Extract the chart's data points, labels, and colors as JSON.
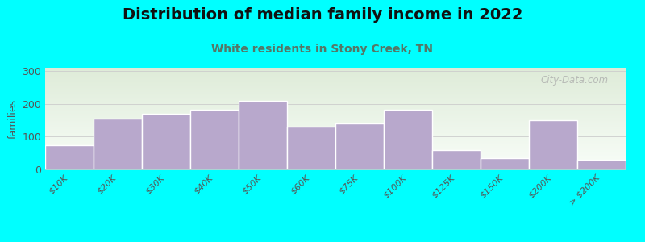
{
  "title": "Distribution of median family income in 2022",
  "subtitle": "White residents in Stony Creek, TN",
  "categories": [
    "$10K",
    "$20K",
    "$30K",
    "$40K",
    "$50K",
    "$60K",
    "$75K",
    "$100K",
    "$125K",
    "$150K",
    "$200K",
    "> $200K"
  ],
  "values": [
    75,
    155,
    170,
    183,
    210,
    130,
    140,
    182,
    60,
    35,
    150,
    30
  ],
  "bar_color": "#b8a8cc",
  "bar_edge_color": "#ffffff",
  "ylabel": "families",
  "ylim": [
    0,
    310
  ],
  "yticks": [
    0,
    100,
    200,
    300
  ],
  "background_color": "#00ffff",
  "plot_bg_color_top": "#deebd8",
  "plot_bg_color_bottom": "#f8fdf8",
  "title_fontsize": 14,
  "subtitle_fontsize": 10,
  "subtitle_color": "#557766",
  "watermark": "City-Data.com",
  "tick_label_rotation": 45,
  "tick_label_fontsize": 8,
  "ylabel_fontsize": 9,
  "ytick_fontsize": 9
}
